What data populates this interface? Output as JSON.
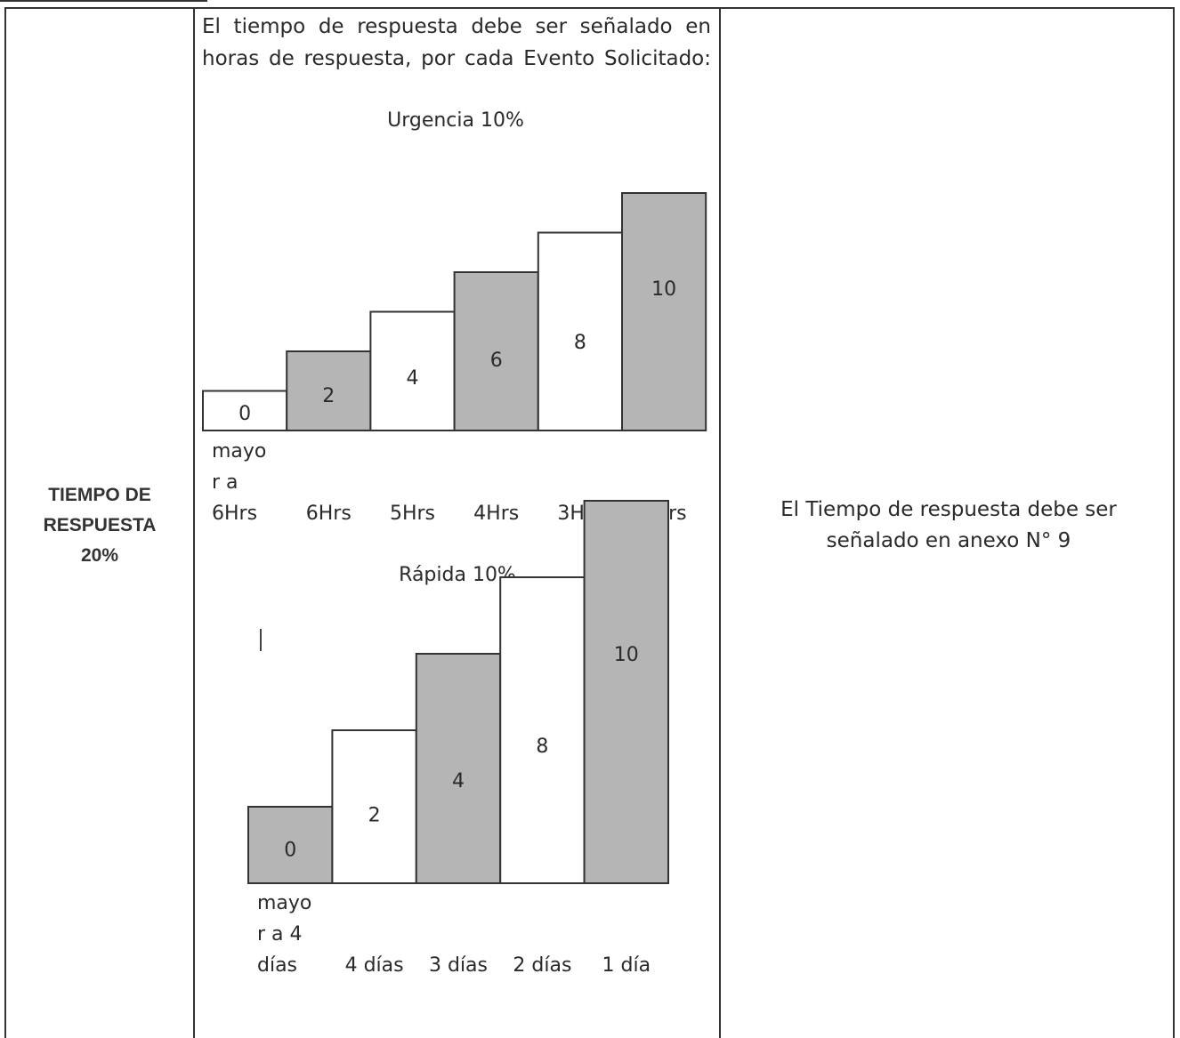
{
  "row_label": [
    "TIEMPO DE",
    "RESPUESTA",
    "20%"
  ],
  "intro_lines": [
    "El tiempo de respuesta debe ser señalado en",
    "horas de respuesta, por cada Evento Solicitado:"
  ],
  "note_lines": [
    "El Tiempo de respuesta debe ser",
    "señalado en anexo N° 9"
  ],
  "colors": {
    "shaded": "#b5b5b5",
    "plain": "#ffffff",
    "border": "#333333",
    "text": "#2a2a2a"
  },
  "chart_data": [
    {
      "type": "bar",
      "title": "Urgencia 10%",
      "categories": [
        "mayor a 6Hrs",
        "6Hrs",
        "5Hrs",
        "4Hrs",
        "3Hrs",
        "2Hrs"
      ],
      "category_lines": [
        [
          "mayo",
          "r a",
          "6Hrs"
        ],
        [
          "6Hrs"
        ],
        [
          "5Hrs"
        ],
        [
          "4Hrs"
        ],
        [
          "3Hrs"
        ],
        [
          "2Hrs"
        ]
      ],
      "values": [
        0,
        2,
        4,
        6,
        8,
        10
      ],
      "labels": [
        "0",
        "2",
        "4",
        "6",
        "8",
        "10"
      ],
      "bar_heights_relative": [
        1,
        2,
        3,
        4,
        5,
        6
      ],
      "fills": [
        "plain",
        "shaded",
        "plain",
        "shaded",
        "plain",
        "shaded"
      ]
    },
    {
      "type": "bar",
      "title": "Rápida 10%",
      "categories": [
        "mayor a 4 días",
        "4 días",
        "3 días",
        "2 días",
        "1 día"
      ],
      "category_lines": [
        [
          "mayo",
          "r a 4",
          "días"
        ],
        [
          "4 días"
        ],
        [
          "3 días"
        ],
        [
          "2 días"
        ],
        [
          "1 día"
        ]
      ],
      "values": [
        0,
        2,
        4,
        8,
        10
      ],
      "labels": [
        "0",
        "2",
        "4",
        "8",
        "10"
      ],
      "bar_heights_relative": [
        1,
        2,
        3,
        4,
        5
      ],
      "fills": [
        "shaded",
        "plain",
        "shaded",
        "plain",
        "shaded"
      ]
    }
  ]
}
